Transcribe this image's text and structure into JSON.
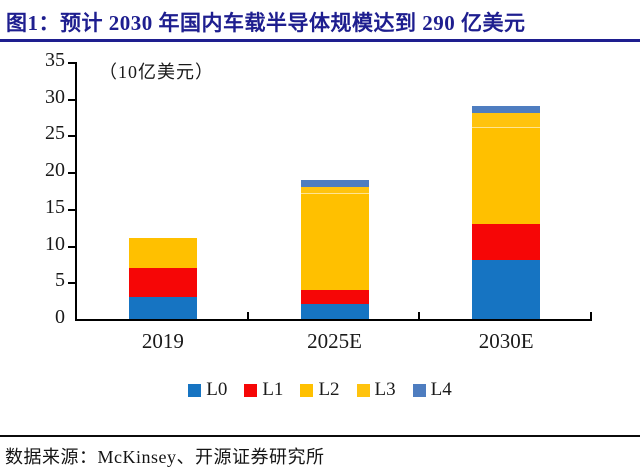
{
  "header": {
    "title": "图1：预计 2030 年国内车载半导体规模达到 290 亿美元",
    "accent_color": "#1e1e8f"
  },
  "chart_data": {
    "type": "bar",
    "stacked": true,
    "title": "预计 2030 年国内车载半导体规模达到 290 亿美元",
    "unit_label": "（10亿美元）",
    "categories": [
      "2019",
      "2025E",
      "2030E"
    ],
    "series": [
      {
        "name": "L0",
        "color": "#1674c2",
        "values": [
          3,
          2,
          8
        ]
      },
      {
        "name": "L1",
        "color": "#f60606",
        "values": [
          4,
          2,
          5
        ]
      },
      {
        "name": "L2",
        "color": "#ffc000",
        "values": [
          4,
          13,
          13
        ]
      },
      {
        "name": "L3",
        "color": "#ffc30e",
        "values": [
          0,
          1,
          2
        ]
      },
      {
        "name": "L4",
        "color": "#4e7dc0",
        "values": [
          0,
          1,
          1
        ]
      }
    ],
    "totals": [
      11,
      19,
      29
    ],
    "ylim": [
      0,
      35
    ],
    "yticks": [
      0,
      5,
      10,
      15,
      20,
      25,
      30,
      35
    ],
    "grid": false,
    "legend_position": "bottom",
    "axis_color": "#000000",
    "text_color": "#1a1a1a"
  },
  "footer": {
    "source": "数据来源：McKinsey、开源证券研究所"
  }
}
